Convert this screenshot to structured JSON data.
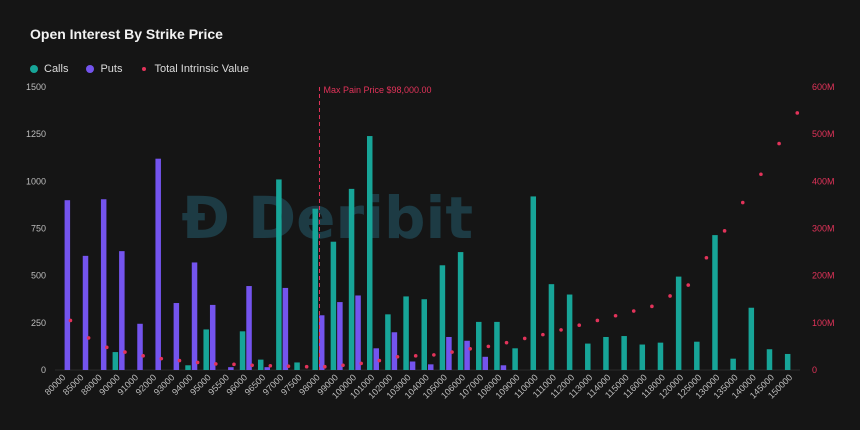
{
  "chart_data": {
    "type": "bar",
    "title": "Open Interest By Strike Price",
    "watermark": "Deribit",
    "legend": [
      {
        "label": "Calls",
        "color": "#17a598",
        "shape": "dot"
      },
      {
        "label": "Puts",
        "color": "#7454ee",
        "shape": "dot"
      },
      {
        "label": "Total Intrinsic Value",
        "color": "#e2335a",
        "shape": "small-dot"
      }
    ],
    "max_pain": {
      "label": "Max Pain Price $98,000.00",
      "strike": "98000"
    },
    "ylim_left": [
      0,
      1500
    ],
    "yticks_left": [
      "0",
      "250",
      "500",
      "750",
      "1000",
      "1250",
      "1500"
    ],
    "ylim_right": [
      0,
      600
    ],
    "yticks_right": [
      "0",
      "100M",
      "200M",
      "300M",
      "400M",
      "500M",
      "600M"
    ],
    "categories": [
      "80000",
      "85000",
      "88000",
      "90000",
      "91000",
      "92000",
      "93000",
      "94000",
      "95000",
      "95500",
      "96000",
      "96500",
      "97000",
      "97500",
      "98000",
      "99000",
      "100000",
      "101000",
      "102000",
      "103000",
      "104000",
      "105000",
      "106000",
      "107000",
      "108000",
      "109000",
      "110000",
      "111000",
      "112000",
      "113000",
      "114000",
      "115000",
      "116000",
      "118000",
      "120000",
      "125000",
      "130000",
      "135000",
      "140000",
      "145000",
      "150000"
    ],
    "series": [
      {
        "name": "Calls",
        "values": [
          0,
          0,
          0,
          95,
          0,
          0,
          0,
          25,
          215,
          0,
          205,
          55,
          1010,
          40,
          855,
          680,
          960,
          1240,
          295,
          390,
          375,
          555,
          625,
          255,
          255,
          115,
          920,
          455,
          400,
          140,
          175,
          180,
          135,
          145,
          495,
          150,
          715,
          60,
          330,
          110,
          85
        ]
      },
      {
        "name": "Puts",
        "values": [
          900,
          605,
          905,
          630,
          245,
          1120,
          355,
          570,
          345,
          15,
          445,
          15,
          435,
          0,
          290,
          360,
          395,
          115,
          200,
          45,
          30,
          175,
          155,
          70,
          25,
          0,
          0,
          0,
          0,
          0,
          0,
          0,
          0,
          0,
          0,
          0,
          0,
          0,
          0,
          0,
          0
        ]
      },
      {
        "name": "Total Intrinsic Value",
        "unit": "M",
        "values": [
          105,
          68,
          48,
          38,
          30,
          24,
          20,
          16,
          13,
          12,
          10,
          9,
          8,
          7,
          7,
          10,
          14,
          20,
          28,
          30,
          32,
          38,
          45,
          50,
          58,
          67,
          75,
          85,
          95,
          105,
          115,
          125,
          135,
          157,
          180,
          238,
          295,
          355,
          415,
          480,
          545
        ]
      }
    ]
  }
}
